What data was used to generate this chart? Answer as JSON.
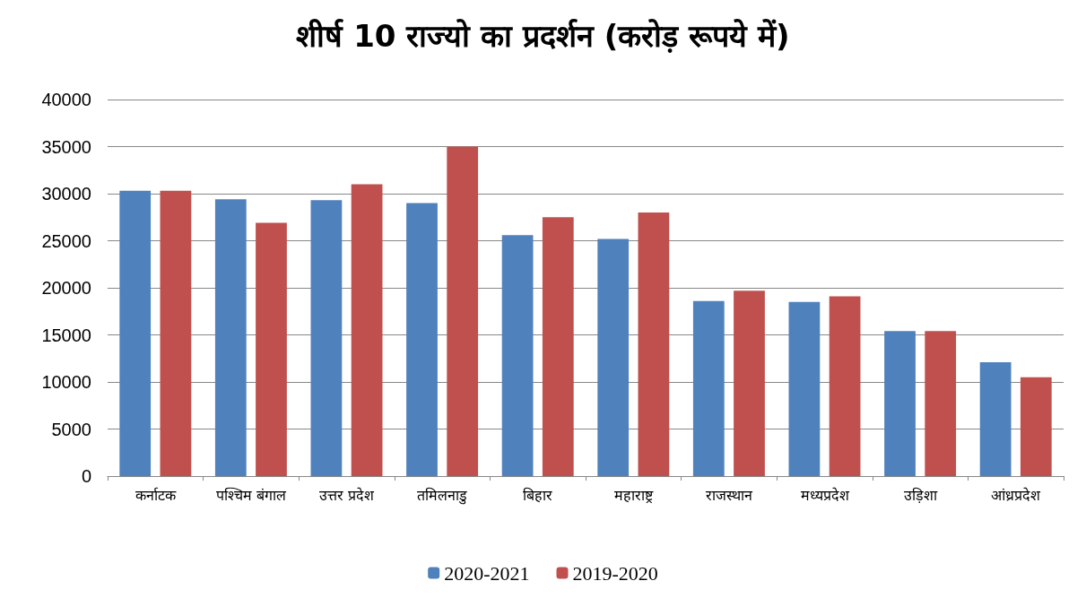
{
  "chart_data": {
    "type": "bar",
    "title": "शीर्ष 10 राज्यो का प्रदर्शन (करोड़ रूपये में)",
    "categories": [
      "कर्नाटक",
      "पश्चिम बंगाल",
      "उत्तर प्रदेश",
      "तमिलनाडु",
      "बिहार",
      "महाराष्ट्र",
      "राजस्थान",
      "मध्यप्रदेश",
      "उड़िशा",
      "आंध्रप्रदेश"
    ],
    "series": [
      {
        "name": "2020-2021",
        "color": "#4f81bd",
        "values": [
          30300,
          29400,
          29300,
          29000,
          25600,
          25200,
          18600,
          18500,
          15400,
          12100
        ]
      },
      {
        "name": "2019-2020",
        "color": "#c0504d",
        "values": [
          30300,
          26900,
          31000,
          35000,
          27500,
          28000,
          19700,
          19100,
          15400,
          10500
        ]
      }
    ],
    "ylim": [
      0,
      40000
    ],
    "yticks": [
      0,
      5000,
      10000,
      15000,
      20000,
      25000,
      30000,
      35000,
      40000
    ],
    "grid": "y",
    "legend": "bottom"
  }
}
